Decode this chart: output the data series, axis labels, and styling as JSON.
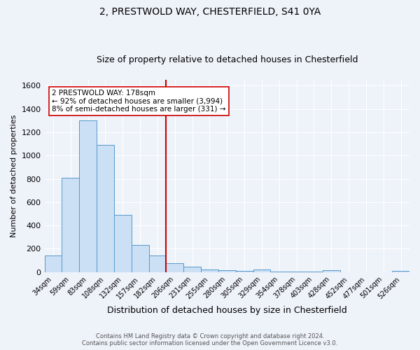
{
  "title_line1": "2, PRESTWOLD WAY, CHESTERFIELD, S41 0YA",
  "title_line2": "Size of property relative to detached houses in Chesterfield",
  "xlabel": "Distribution of detached houses by size in Chesterfield",
  "ylabel": "Number of detached properties",
  "footer_line1": "Contains HM Land Registry data © Crown copyright and database right 2024.",
  "footer_line2": "Contains public sector information licensed under the Open Government Licence v3.0.",
  "annotation_line1": "2 PRESTWOLD WAY: 178sqm",
  "annotation_line2": "← 92% of detached houses are smaller (3,994)",
  "annotation_line3": "8% of semi-detached houses are larger (331) →",
  "bar_labels": [
    "34sqm",
    "59sqm",
    "83sqm",
    "108sqm",
    "132sqm",
    "157sqm",
    "182sqm",
    "206sqm",
    "231sqm",
    "255sqm",
    "280sqm",
    "305sqm",
    "329sqm",
    "354sqm",
    "378sqm",
    "403sqm",
    "428sqm",
    "452sqm",
    "477sqm",
    "501sqm",
    "526sqm"
  ],
  "bar_values": [
    140,
    810,
    1300,
    1090,
    490,
    235,
    140,
    75,
    45,
    25,
    15,
    13,
    20,
    5,
    5,
    2,
    15,
    0,
    0,
    0,
    12
  ],
  "bar_color": "#cce0f5",
  "bar_edge_color": "#5599cc",
  "vline_x": 6.5,
  "vline_color": "#cc0000",
  "ylim": [
    0,
    1650
  ],
  "yticks": [
    0,
    200,
    400,
    600,
    800,
    1000,
    1200,
    1400,
    1600
  ],
  "background_color": "#eef2f9",
  "grid_color": "#ffffff",
  "annotation_box_color": "#ffffff",
  "annotation_box_edge": "#cc0000",
  "title_fontsize": 10,
  "subtitle_fontsize": 9
}
